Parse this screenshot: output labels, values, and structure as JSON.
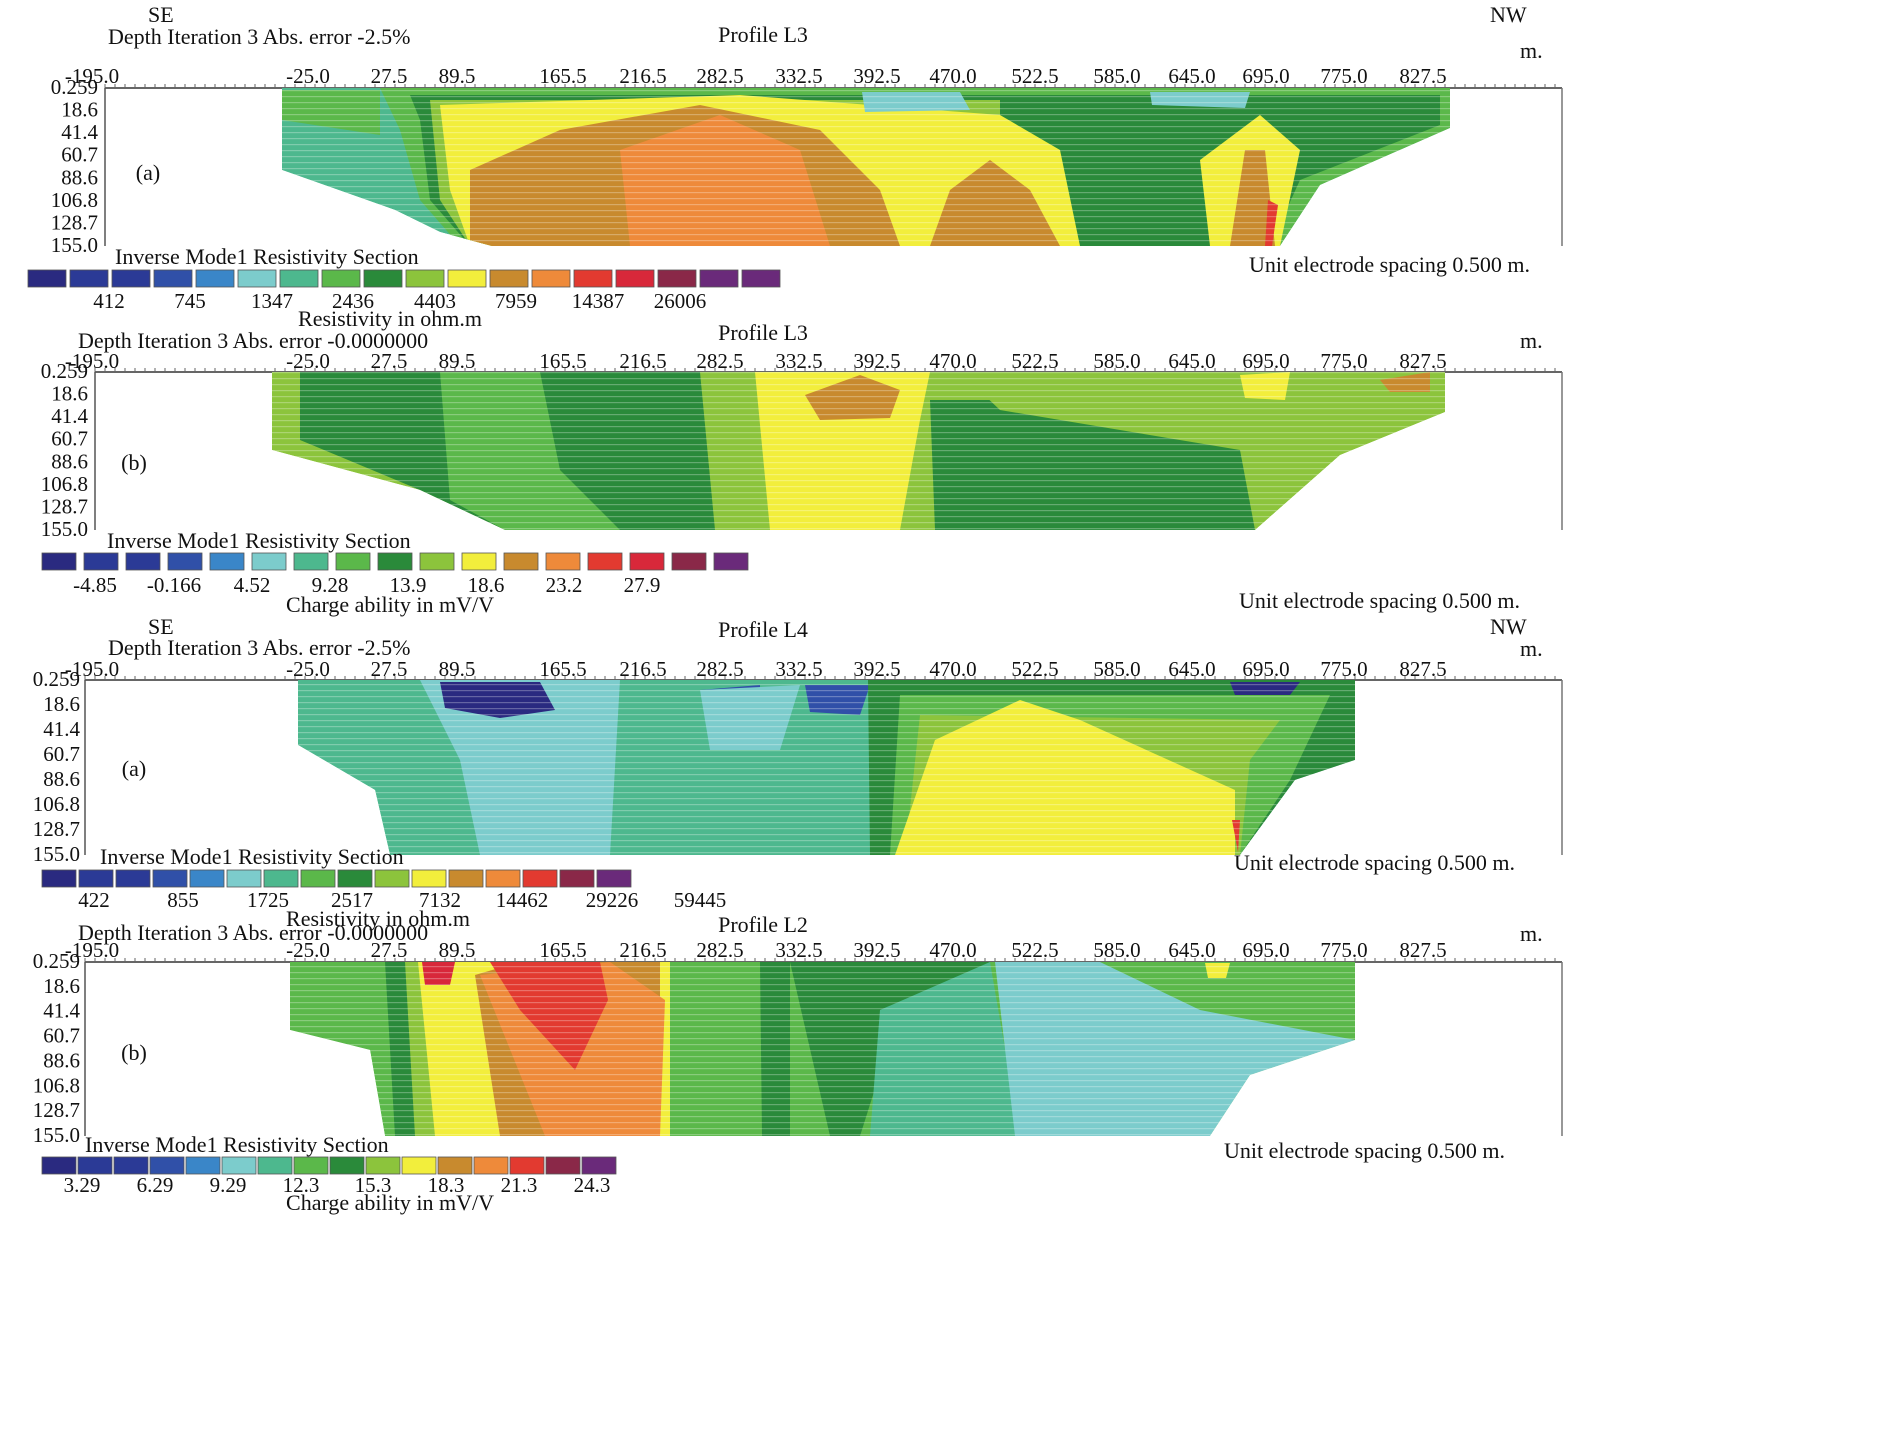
{
  "figure": {
    "panels": [
      {
        "id": "p1",
        "se_label": "SE",
        "nw_label": "NW",
        "header": "Depth Iteration 3 Abs. error -2.5%",
        "profile": "Profile L3",
        "unit_m": "m.",
        "panel_letter": "(a)",
        "section_title": "Inverse Mode1 Resistivity Section",
        "scale_values": [
          "412",
          "745",
          "1347",
          "2436",
          "4403",
          "7959",
          "14387",
          "26006"
        ],
        "scale_title": "Resistivity in ohm.m",
        "spacing_note": "Unit electrode spacing 0.500 m."
      },
      {
        "id": "p2",
        "se_label": "",
        "nw_label": "",
        "header": "Depth Iteration 3 Abs. error -0.0000000",
        "profile": "Profile L3",
        "unit_m": "m.",
        "panel_letter": "(b)",
        "section_title": "Inverse Mode1 Resistivity Section",
        "scale_values": [
          "-4.85",
          "-0.166",
          "4.52",
          "9.28",
          "13.9",
          "18.6",
          "23.2",
          "27.9"
        ],
        "scale_title": "Charge ability in mV/V",
        "spacing_note": "Unit electrode spacing 0.500 m."
      },
      {
        "id": "p3",
        "se_label": "SE",
        "nw_label": "NW",
        "header": "Depth Iteration 3 Abs. error -2.5%",
        "profile": "Profile L4",
        "unit_m": "m.",
        "panel_letter": "(a)",
        "section_title": "Inverse Mode1 Resistivity Section",
        "scale_values": [
          "422",
          "855",
          "1725",
          "2517",
          "7132",
          "14462",
          "29226",
          "59445"
        ],
        "scale_title": "Resistivity in ohm.m",
        "spacing_note": "Unit electrode spacing 0.500 m."
      },
      {
        "id": "p4",
        "se_label": "",
        "nw_label": "",
        "header": "Depth Iteration 3 Abs. error -0.0000000",
        "profile": "Profile L2",
        "unit_m": "m.",
        "panel_letter": "(b)",
        "section_title": "Inverse Mode1 Resistivity Section",
        "scale_values": [
          "3.29",
          "6.29",
          "9.29",
          "12.3",
          "15.3",
          "18.3",
          "21.3",
          "24.3"
        ],
        "scale_title": "Charge ability in mV/V",
        "spacing_note": "Unit electrode spacing 0.500 m."
      }
    ]
  },
  "chart_data": {
    "type": "heatmap",
    "x_ticks": [
      "-195.0",
      "-25.0",
      "27.5",
      "89.5",
      "165.5",
      "216.5",
      "282.5",
      "332.5",
      "392.5",
      "470.0",
      "522.5",
      "585.0",
      "645.0",
      "695.0",
      "775.0",
      "827.5"
    ],
    "x_tick_values": [
      -195.0,
      -25.0,
      27.5,
      89.5,
      165.5,
      216.5,
      282.5,
      332.5,
      392.5,
      470.0,
      522.5,
      585.0,
      645.0,
      695.0,
      775.0,
      827.5
    ],
    "depth_ticks": [
      "0.259",
      "18.6",
      "41.4",
      "60.7",
      "88.6",
      "106.8",
      "128.7",
      "155.0"
    ],
    "depth_tick_values": [
      0.259,
      18.6,
      41.4,
      60.7,
      88.6,
      106.8,
      128.7,
      155.0
    ],
    "colorscale": [
      "#2a2a80",
      "#2b3a96",
      "#3050a8",
      "#3a86c8",
      "#7ccccc",
      "#4db88e",
      "#5bb84a",
      "#2a8a3a",
      "#8cc43c",
      "#f2ee3c",
      "#c88a2e",
      "#ee8a3a",
      "#e23a30",
      "#d8283a",
      "#8a2848",
      "#6a2a7a"
    ]
  }
}
